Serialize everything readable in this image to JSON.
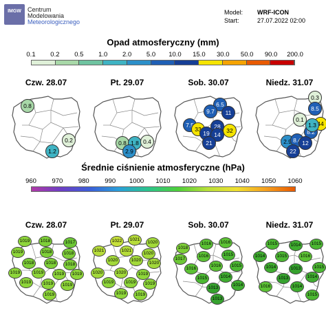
{
  "header": {
    "logo_text": "IMGW",
    "org_line1": "Centrum",
    "org_line2": "Modelowania",
    "org_line3": "Meteorologicznego",
    "model_label": "Model:",
    "model_value": "WRF-ICON",
    "start_label": "Start:",
    "start_value": "27.07.2022 02:00"
  },
  "precip": {
    "title": "Opad atmosferyczny (mm)",
    "ticks": [
      "0.1",
      "0.2",
      "0.5",
      "1.0",
      "2.0",
      "5.0",
      "10.0",
      "15.0",
      "30.0",
      "50.0",
      "90.0",
      "200.0"
    ],
    "colors": [
      "#dff0d8",
      "#a8d8a8",
      "#6fc3a0",
      "#3fb3c3",
      "#2c8fc9",
      "#1f5fb5",
      "#163f96",
      "#f5e400",
      "#f5a300",
      "#e85a00",
      "#c80000"
    ],
    "days": [
      {
        "label": "Czw. 28.07",
        "points": [
          {
            "v": "0.8",
            "c": "#a8d8a8"
          },
          {
            "v": "0.2",
            "c": "#dff0d8"
          },
          {
            "v": "1.2",
            "c": "#3fb3c3"
          }
        ]
      },
      {
        "label": "Pt. 29.07",
        "points": [
          {
            "v": "0.8",
            "c": "#a8d8a8"
          },
          {
            "v": "1.8",
            "c": "#3fb3c3"
          },
          {
            "v": "0.4",
            "c": "#dff0d8"
          },
          {
            "v": "2.9",
            "c": "#2c8fc9"
          }
        ]
      },
      {
        "label": "Sob. 30.07",
        "points": [
          {
            "v": "6.5",
            "c": "#1f5fb5"
          },
          {
            "v": "9.7",
            "c": "#1f5fb5"
          },
          {
            "v": "11",
            "c": "#163f96"
          },
          {
            "v": "7.5",
            "c": "#1f5fb5"
          },
          {
            "v": "33",
            "c": "#f5e400"
          },
          {
            "v": "28",
            "c": "#163f96"
          },
          {
            "v": "32",
            "c": "#f5e400"
          },
          {
            "v": "19",
            "c": "#163f96"
          },
          {
            "v": "14",
            "c": "#163f96"
          },
          {
            "v": "21",
            "c": "#163f96"
          }
        ]
      },
      {
        "label": "Niedz. 31.07",
        "points": [
          {
            "v": "0.3",
            "c": "#dff0d8"
          },
          {
            "v": "8.5",
            "c": "#1f5fb5"
          },
          {
            "v": "0.1",
            "c": "#dff0d8"
          },
          {
            "v": "8.2",
            "c": "#1f5fb5"
          },
          {
            "v": "44",
            "c": "#f5e400"
          },
          {
            "v": "1.3",
            "c": "#3fb3c3"
          },
          {
            "v": "2.9",
            "c": "#2c8fc9"
          },
          {
            "v": "8.4",
            "c": "#1f5fb5"
          },
          {
            "v": "12",
            "c": "#163f96"
          },
          {
            "v": "22",
            "c": "#163f96"
          }
        ]
      }
    ]
  },
  "pressure": {
    "title": "Średnie ciśnienie atmosferyczne (hPa)",
    "ticks": [
      "960",
      "970",
      "980",
      "990",
      "1000",
      "1010",
      "1020",
      "1030",
      "1040",
      "1050",
      "1060"
    ],
    "gradient_colors": [
      "#b03aa8",
      "#6d3fc4",
      "#3b5fd8",
      "#2aa0d8",
      "#2cc48a",
      "#4fcf3a",
      "#b8e03a",
      "#f0e030",
      "#f5a020",
      "#e85a00"
    ],
    "days": [
      {
        "label": "Czw. 28.07",
        "points": [
          {
            "v": "1019",
            "c": "#8ed63a"
          },
          {
            "v": "1018",
            "c": "#7ecf38"
          },
          {
            "v": "1017",
            "c": "#6dc836"
          },
          {
            "v": "1019",
            "c": "#8ed63a"
          },
          {
            "v": "1018",
            "c": "#7ecf38"
          },
          {
            "v": "1018",
            "c": "#7ecf38"
          },
          {
            "v": "1018",
            "c": "#7ecf38"
          },
          {
            "v": "1018",
            "c": "#7ecf38"
          },
          {
            "v": "1018",
            "c": "#7ecf38"
          },
          {
            "v": "1019",
            "c": "#8ed63a"
          },
          {
            "v": "1019",
            "c": "#8ed63a"
          },
          {
            "v": "1019",
            "c": "#8ed63a"
          },
          {
            "v": "1019",
            "c": "#8ed63a"
          },
          {
            "v": "1019",
            "c": "#8ed63a"
          },
          {
            "v": "1019",
            "c": "#8ed63a"
          },
          {
            "v": "1019",
            "c": "#8ed63a"
          },
          {
            "v": "1019",
            "c": "#8ed63a"
          }
        ]
      },
      {
        "label": "Pt. 29.07",
        "points": [
          {
            "v": "1022",
            "c": "#c6e03a"
          },
          {
            "v": "1021",
            "c": "#b6dc3a"
          },
          {
            "v": "1020",
            "c": "#a2d93a"
          },
          {
            "v": "1021",
            "c": "#b6dc3a"
          },
          {
            "v": "1021",
            "c": "#b6dc3a"
          },
          {
            "v": "1020",
            "c": "#a2d93a"
          },
          {
            "v": "1020",
            "c": "#a2d93a"
          },
          {
            "v": "1020",
            "c": "#a2d93a"
          },
          {
            "v": "1020",
            "c": "#a2d93a"
          },
          {
            "v": "1020",
            "c": "#a2d93a"
          },
          {
            "v": "1020",
            "c": "#a2d93a"
          },
          {
            "v": "1019",
            "c": "#8ed63a"
          },
          {
            "v": "1019",
            "c": "#8ed63a"
          },
          {
            "v": "1019",
            "c": "#8ed63a"
          },
          {
            "v": "1019",
            "c": "#8ed63a"
          },
          {
            "v": "1019",
            "c": "#8ed63a"
          },
          {
            "v": "1019",
            "c": "#8ed63a"
          }
        ]
      },
      {
        "label": "Sob. 30.07",
        "points": [
          {
            "v": "1018",
            "c": "#7ecf38"
          },
          {
            "v": "1016",
            "c": "#5cc234"
          },
          {
            "v": "1016",
            "c": "#5cc234"
          },
          {
            "v": "1017",
            "c": "#6dc836"
          },
          {
            "v": "1016",
            "c": "#5cc234"
          },
          {
            "v": "1015",
            "c": "#4cb832"
          },
          {
            "v": "1016",
            "c": "#5cc234"
          },
          {
            "v": "1016",
            "c": "#5cc234"
          },
          {
            "v": "1015",
            "c": "#4cb832"
          },
          {
            "v": "1015",
            "c": "#4cb832"
          },
          {
            "v": "1014",
            "c": "#40ad30"
          },
          {
            "v": "1014",
            "c": "#40ad30"
          },
          {
            "v": "1013",
            "c": "#36a22e"
          },
          {
            "v": "1013",
            "c": "#36a22e"
          }
        ]
      },
      {
        "label": "Niedz. 31.07",
        "points": [
          {
            "v": "1015",
            "c": "#4cb832"
          },
          {
            "v": "1014",
            "c": "#40ad30"
          },
          {
            "v": "1015",
            "c": "#4cb832"
          },
          {
            "v": "1014",
            "c": "#40ad30"
          },
          {
            "v": "1015",
            "c": "#4cb832"
          },
          {
            "v": "1016",
            "c": "#5cc234"
          },
          {
            "v": "1014",
            "c": "#40ad30"
          },
          {
            "v": "1013",
            "c": "#36a22e"
          },
          {
            "v": "1015",
            "c": "#4cb832"
          },
          {
            "v": "1013",
            "c": "#36a22e"
          },
          {
            "v": "1014",
            "c": "#40ad30"
          },
          {
            "v": "1016",
            "c": "#5cc234"
          },
          {
            "v": "1014",
            "c": "#40ad30"
          },
          {
            "v": "1015",
            "c": "#4cb832"
          }
        ]
      }
    ]
  }
}
